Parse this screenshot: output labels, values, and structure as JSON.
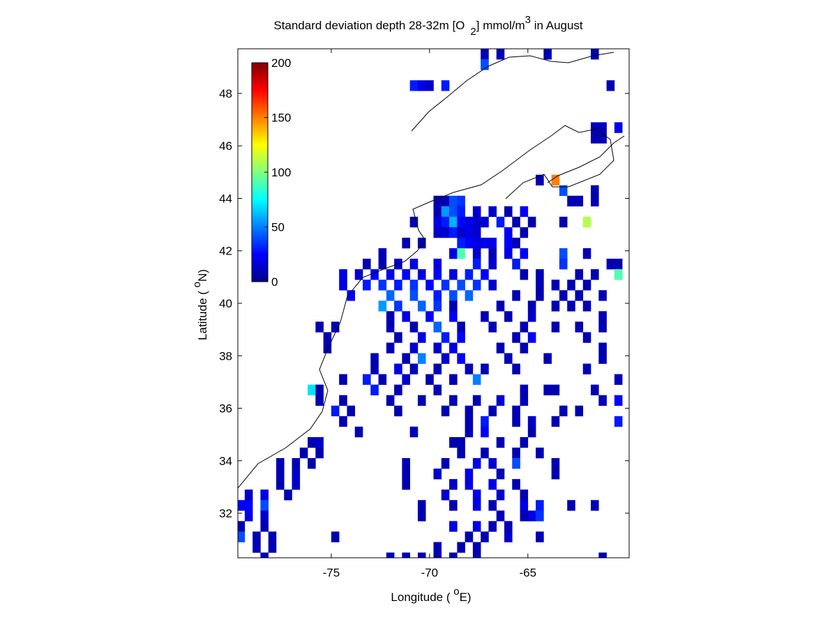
{
  "chart_data": {
    "type": "heatmap",
    "title": {
      "main": "Standard deviation depth 28-32m [O",
      "sub": "2",
      "mid": "] mmol/m",
      "sup": "3",
      "end": " in August"
    },
    "xlabel": {
      "main": "Longitude ( ",
      "sup": "o",
      "end": "E)"
    },
    "ylabel": {
      "main": "Latitude ( ",
      "sup": "o",
      "end": "N)"
    },
    "xlim": [
      -79.75,
      -59.85
    ],
    "ylim": [
      30.3,
      49.7
    ],
    "xticks": [
      -75,
      -70,
      -65
    ],
    "yticks": [
      32,
      34,
      36,
      38,
      40,
      42,
      44,
      46,
      48
    ],
    "colormap": "jet",
    "clim": [
      0,
      200
    ],
    "cticks": [
      0,
      50,
      100,
      150,
      200
    ],
    "cell": [
      0.4,
      0.4
    ],
    "rows": [
      {
        "lat": 49.5,
        "lon": [
          -67.2,
          -66.4,
          -64.0,
          -61.6
        ],
        "values": [
          10,
          10,
          10,
          10
        ]
      },
      {
        "lat": 49.1,
        "lon": [
          -67.2
        ],
        "values": [
          40
        ]
      },
      {
        "lat": 48.3,
        "lon": [
          -70.8,
          -70.4,
          -70.0,
          -69.2,
          -60.8
        ],
        "values": [
          30,
          20,
          15,
          30,
          10
        ]
      },
      {
        "lat": 46.7,
        "lon": [
          -61.6,
          -61.2,
          -60.4
        ],
        "values": [
          10,
          10,
          20
        ]
      },
      {
        "lat": 46.3,
        "lon": [
          -61.6,
          -61.2
        ],
        "values": [
          10,
          10
        ]
      },
      {
        "lat": 44.7,
        "lon": [
          -64.4,
          -63.6
        ],
        "values": [
          10,
          150
        ]
      },
      {
        "lat": 44.3,
        "lon": [
          -63.2,
          -61.6
        ],
        "values": [
          40,
          10
        ]
      },
      {
        "lat": 43.9,
        "lon": [
          -69.6,
          -69.2,
          -68.8,
          -68.4,
          -62.8,
          -62.4,
          -61.6
        ],
        "values": [
          10,
          10,
          40,
          35,
          10,
          10,
          10
        ]
      },
      {
        "lat": 43.5,
        "lon": [
          -69.6,
          -69.2,
          -68.8,
          -68.4,
          -67.6,
          -66.8,
          -66.0,
          -65.2
        ],
        "values": [
          10,
          55,
          40,
          30,
          15,
          15,
          10,
          25
        ]
      },
      {
        "lat": 43.1,
        "lon": [
          -70.8,
          -69.6,
          -69.2,
          -68.8,
          -68.4,
          -68.0,
          -67.6,
          -67.2,
          -66.4,
          -65.6,
          -64.8,
          -63.2,
          -62.0
        ],
        "values": [
          10,
          20,
          30,
          60,
          25,
          20,
          15,
          15,
          30,
          10,
          10,
          10,
          110
        ]
      },
      {
        "lat": 42.7,
        "lon": [
          -69.6,
          -69.2,
          -68.8,
          -68.4,
          -68.0,
          -67.6,
          -66.0,
          -65.2
        ],
        "values": [
          15,
          15,
          30,
          15,
          20,
          15,
          25,
          10
        ]
      },
      {
        "lat": 42.3,
        "lon": [
          -71.2,
          -70.4,
          -68.4,
          -68.0,
          -67.6,
          -67.2,
          -66.8,
          -66.0,
          -65.6
        ],
        "values": [
          10,
          10,
          30,
          25,
          20,
          20,
          20,
          25,
          10
        ]
      },
      {
        "lat": 41.9,
        "lon": [
          -72.4,
          -68.8,
          -68.4,
          -67.6,
          -66.8,
          -66.0,
          -65.2,
          -63.2,
          -62.0
        ],
        "values": [
          10,
          20,
          90,
          15,
          10,
          20,
          25,
          40,
          10
        ]
      },
      {
        "lat": 41.5,
        "lon": [
          -73.2,
          -72.4,
          -71.6,
          -70.8,
          -69.6,
          -67.6,
          -66.8,
          -65.6,
          -63.2,
          -60.8,
          -60.4
        ],
        "values": [
          10,
          10,
          15,
          20,
          20,
          30,
          15,
          30,
          35,
          10,
          10
        ]
      },
      {
        "lat": 41.1,
        "lon": [
          -74.4,
          -73.6,
          -72.8,
          -72.0,
          -71.2,
          -70.4,
          -69.6,
          -68.8,
          -68.0,
          -67.2,
          -65.2,
          -64.4,
          -62.4,
          -61.6,
          -60.4
        ],
        "values": [
          20,
          15,
          25,
          20,
          25,
          20,
          25,
          20,
          30,
          25,
          10,
          10,
          10,
          10,
          90
        ]
      },
      {
        "lat": 40.7,
        "lon": [
          -74.4,
          -73.2,
          -72.4,
          -71.6,
          -70.8,
          -70.0,
          -69.2,
          -68.4,
          -67.6,
          -66.8,
          -64.4,
          -63.6,
          -62.8,
          -62.0
        ],
        "values": [
          20,
          30,
          35,
          30,
          35,
          25,
          35,
          40,
          35,
          15,
          10,
          10,
          10,
          10
        ]
      },
      {
        "lat": 40.3,
        "lon": [
          -74.0,
          -72.0,
          -70.8,
          -69.6,
          -68.8,
          -68.0,
          -65.6,
          -64.4,
          -63.2,
          -62.4,
          -61.2
        ],
        "values": [
          25,
          45,
          40,
          30,
          40,
          45,
          10,
          10,
          10,
          10,
          10
        ]
      },
      {
        "lat": 39.9,
        "lon": [
          -72.4,
          -71.6,
          -70.4,
          -69.6,
          -68.8,
          -66.4,
          -64.8,
          -63.6,
          -62.8,
          -62.0
        ],
        "values": [
          55,
          35,
          45,
          35,
          10,
          10,
          10,
          10,
          10,
          10
        ]
      },
      {
        "lat": 39.5,
        "lon": [
          -72.0,
          -71.2,
          -70.0,
          -68.8,
          -67.2,
          -66.0,
          -64.8,
          -61.2
        ],
        "values": [
          10,
          20,
          25,
          25,
          10,
          10,
          15,
          10
        ]
      },
      {
        "lat": 39.1,
        "lon": [
          -75.6,
          -74.8,
          -72.0,
          -70.8,
          -69.6,
          -68.4,
          -66.8,
          -65.2,
          -63.6,
          -62.4,
          -61.2
        ],
        "values": [
          10,
          10,
          10,
          10,
          45,
          10,
          10,
          10,
          10,
          10,
          10
        ]
      },
      {
        "lat": 38.7,
        "lon": [
          -75.2,
          -71.6,
          -70.4,
          -69.2,
          -68.4,
          -65.6,
          -64.8,
          -62.0
        ],
        "values": [
          10,
          10,
          20,
          30,
          25,
          10,
          25,
          10
        ]
      },
      {
        "lat": 38.3,
        "lon": [
          -75.2,
          -72.0,
          -70.8,
          -69.6,
          -68.8,
          -66.4,
          -65.2,
          -61.2
        ],
        "values": [
          10,
          10,
          15,
          15,
          20,
          10,
          10,
          10
        ]
      },
      {
        "lat": 37.9,
        "lon": [
          -72.8,
          -71.2,
          -70.4,
          -69.2,
          -68.4,
          -66.0,
          -64.0,
          -61.2
        ],
        "values": [
          10,
          10,
          50,
          15,
          25,
          10,
          10,
          10
        ]
      },
      {
        "lat": 37.5,
        "lon": [
          -72.8,
          -71.6,
          -70.8,
          -69.6,
          -68.0,
          -67.2,
          -65.6,
          -62.0
        ],
        "values": [
          10,
          20,
          10,
          10,
          10,
          10,
          10,
          10
        ]
      },
      {
        "lat": 37.1,
        "lon": [
          -74.4,
          -73.2,
          -72.4,
          -71.2,
          -70.0,
          -68.8,
          -67.6,
          -60.4
        ],
        "values": [
          10,
          30,
          10,
          15,
          10,
          10,
          50,
          10
        ]
      },
      {
        "lat": 36.7,
        "lon": [
          -76.0,
          -75.6,
          -72.8,
          -71.6,
          -69.6,
          -65.2,
          -64.0,
          -63.6,
          -61.6
        ],
        "values": [
          70,
          10,
          30,
          10,
          10,
          10,
          10,
          10,
          10
        ]
      },
      {
        "lat": 36.3,
        "lon": [
          -75.6,
          -74.4,
          -72.0,
          -70.4,
          -68.8,
          -67.6,
          -66.4,
          -65.2,
          -61.2,
          -60.4
        ],
        "values": [
          10,
          10,
          10,
          10,
          10,
          10,
          15,
          10,
          10,
          25
        ]
      },
      {
        "lat": 35.9,
        "lon": [
          -74.8,
          -74.0,
          -71.6,
          -69.2,
          -68.0,
          -66.8,
          -65.6,
          -63.2,
          -62.4
        ],
        "values": [
          30,
          10,
          10,
          10,
          10,
          10,
          10,
          10,
          10
        ]
      },
      {
        "lat": 35.5,
        "lon": [
          -74.4,
          -68.0,
          -67.2,
          -65.6,
          -64.8,
          -63.6,
          -60.4
        ],
        "values": [
          10,
          10,
          30,
          10,
          15,
          10,
          30
        ]
      },
      {
        "lat": 35.1,
        "lon": [
          -73.6,
          -70.8,
          -68.0,
          -67.2,
          -64.8
        ],
        "values": [
          10,
          10,
          10,
          25,
          10
        ]
      },
      {
        "lat": 34.7,
        "lon": [
          -76.0,
          -75.6,
          -68.8,
          -68.4,
          -66.4,
          -65.2
        ],
        "values": [
          10,
          15,
          10,
          10,
          10,
          10
        ]
      },
      {
        "lat": 34.3,
        "lon": [
          -76.4,
          -75.6,
          -68.4,
          -67.2,
          -65.6,
          -64.4
        ],
        "values": [
          10,
          10,
          10,
          10,
          10,
          10
        ]
      },
      {
        "lat": 33.9,
        "lon": [
          -77.6,
          -76.8,
          -76.0,
          -71.2,
          -69.2,
          -67.6,
          -66.8,
          -65.6,
          -63.6
        ],
        "values": [
          10,
          10,
          10,
          10,
          10,
          20,
          15,
          40,
          10
        ]
      },
      {
        "lat": 33.5,
        "lon": [
          -77.6,
          -76.8,
          -71.2,
          -69.6,
          -68.0,
          -66.4,
          -63.6
        ],
        "values": [
          10,
          15,
          10,
          15,
          20,
          10,
          10
        ]
      },
      {
        "lat": 33.1,
        "lon": [
          -77.6,
          -76.8,
          -71.2,
          -68.8,
          -68.0,
          -66.8,
          -65.6
        ],
        "values": [
          10,
          15,
          10,
          15,
          20,
          20,
          10
        ]
      },
      {
        "lat": 32.7,
        "lon": [
          -79.2,
          -78.4,
          -77.2,
          -69.2,
          -67.6,
          -66.4,
          -65.2
        ],
        "values": [
          15,
          20,
          10,
          15,
          20,
          15,
          10
        ]
      },
      {
        "lat": 32.3,
        "lon": [
          -79.6,
          -79.2,
          -78.4,
          -70.4,
          -68.8,
          -67.6,
          -66.8,
          -65.2,
          -64.4,
          -62.8,
          -61.6
        ],
        "values": [
          25,
          25,
          40,
          10,
          10,
          20,
          10,
          20,
          30,
          10,
          10
        ]
      },
      {
        "lat": 31.9,
        "lon": [
          -79.2,
          -78.4,
          -70.4,
          -66.4,
          -65.2,
          -64.8,
          -64.4
        ],
        "values": [
          20,
          15,
          10,
          10,
          10,
          20,
          35
        ]
      },
      {
        "lat": 31.5,
        "lon": [
          -79.6,
          -78.4,
          -68.8,
          -67.6,
          -66.8,
          -66.0
        ],
        "values": [
          10,
          10,
          20,
          20,
          10,
          10
        ]
      },
      {
        "lat": 31.1,
        "lon": [
          -79.6,
          -78.8,
          -78.0,
          -74.8,
          -68.0,
          -67.2,
          -66.0,
          -64.4
        ],
        "values": [
          40,
          10,
          10,
          10,
          10,
          10,
          15,
          10
        ]
      },
      {
        "lat": 30.7,
        "lon": [
          -78.8,
          -78.0,
          -69.6,
          -68.4,
          -67.6
        ],
        "values": [
          10,
          10,
          10,
          10,
          10
        ]
      },
      {
        "lat": 30.3,
        "lon": [
          -78.4,
          -72.0,
          -71.2,
          -70.4,
          -69.6,
          -68.8,
          -67.6,
          -61.2
        ],
        "values": [
          10,
          10,
          10,
          10,
          10,
          10,
          10,
          10
        ]
      }
    ]
  }
}
